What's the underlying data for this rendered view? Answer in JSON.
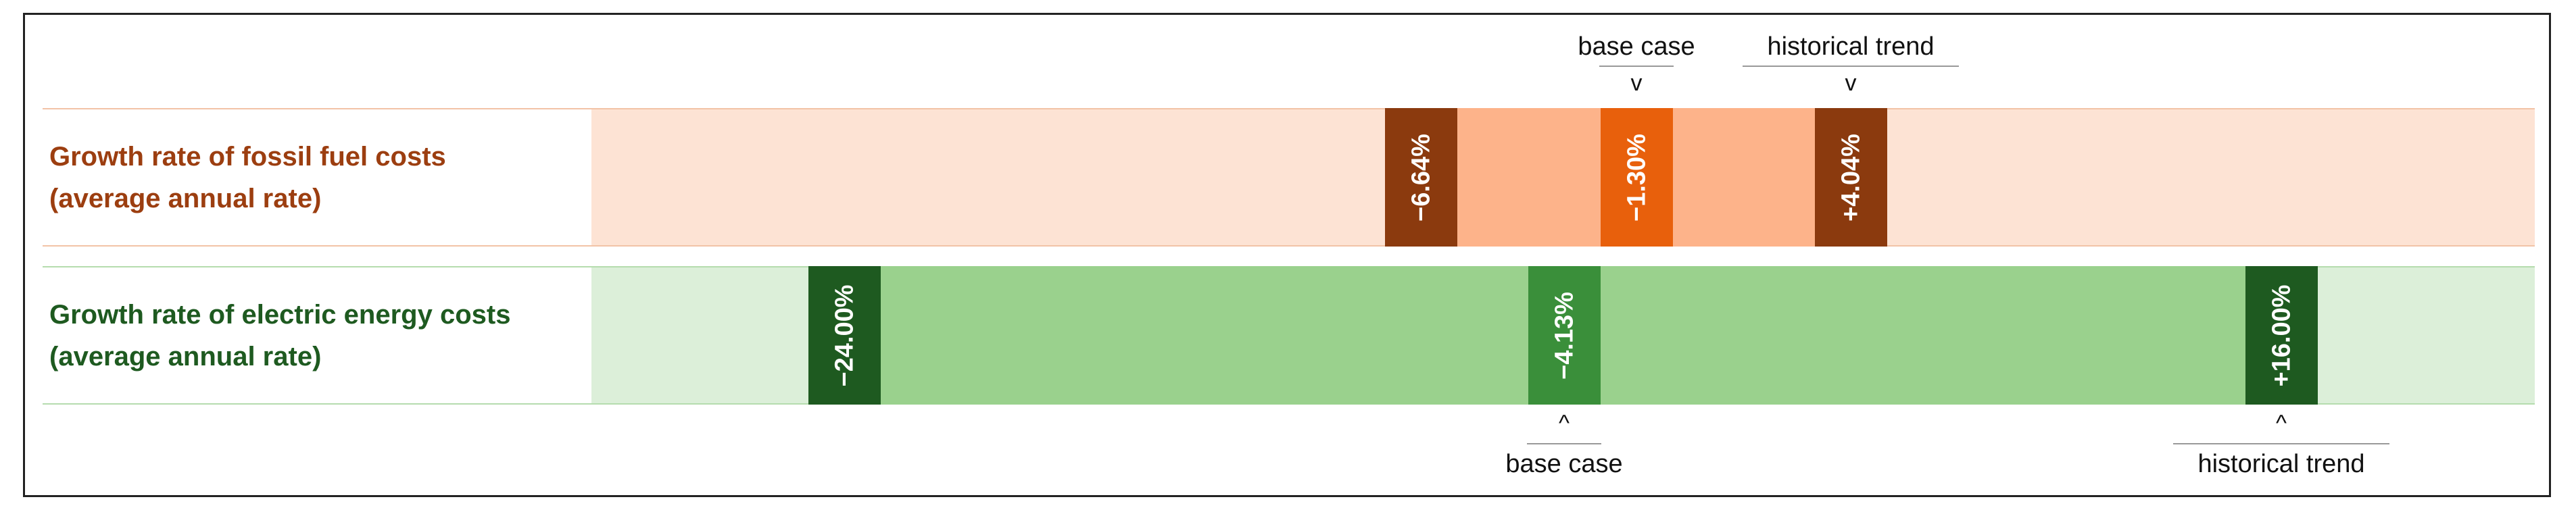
{
  "rows": [
    {
      "title": [
        "Growth rate of fossil fuel costs",
        "(average annual rate)"
      ],
      "markers": [
        "−6.64%",
        "−1.30%",
        "+4.04%"
      ],
      "pointer": "v",
      "annotations": [
        "base case",
        "historical trend"
      ]
    },
    {
      "title": [
        "Growth rate of electric energy costs",
        "(average annual rate)"
      ],
      "markers": [
        "−24.00%",
        "−4.13%",
        "+16.00%"
      ],
      "pointer": "^",
      "annotations": [
        "base case",
        "historical trend"
      ]
    }
  ]
}
